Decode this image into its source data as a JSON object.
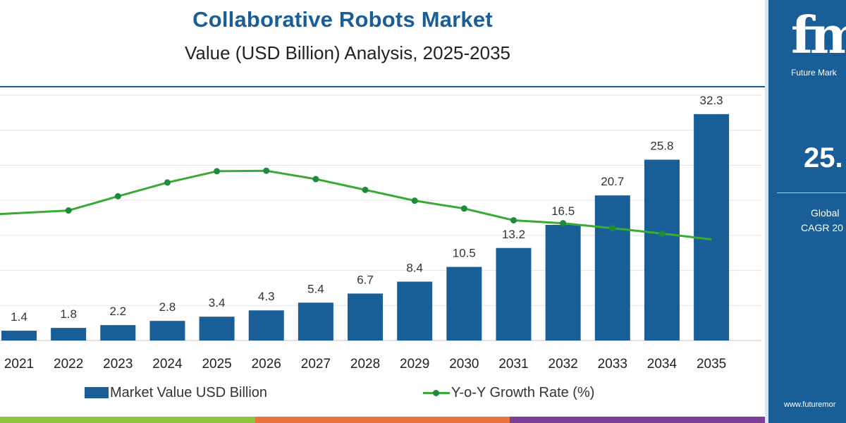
{
  "chart_data": {
    "type": "bar",
    "title": "Collaborative Robots Market",
    "subtitle": "Value (USD Billion) Analysis, 2025-2035",
    "categories": [
      "2021",
      "2022",
      "2023",
      "2024",
      "2025",
      "2026",
      "2027",
      "2028",
      "2029",
      "2030",
      "2031",
      "2032",
      "2033",
      "2034",
      "2035"
    ],
    "series": [
      {
        "name": "Market Value USD Billion",
        "type": "bar",
        "values": [
          1.4,
          1.8,
          2.2,
          2.8,
          3.4,
          4.3,
          5.4,
          6.7,
          8.4,
          10.5,
          13.2,
          16.5,
          20.7,
          25.8,
          32.3
        ],
        "labels": [
          "1.4",
          "1.8",
          "2.2",
          "2.8",
          "3.4",
          "4.3",
          "5.4",
          "6.7",
          "8.4",
          "10.5",
          "13.2",
          "16.5",
          "20.7",
          "25.8",
          "32.3"
        ],
        "color": "#1a5e97"
      },
      {
        "name": "Y-o-Y Growth Rate (%)",
        "type": "line",
        "values": [
          null,
          26.5,
          29.4,
          32.2,
          34.5,
          34.6,
          32.9,
          30.7,
          28.5,
          26.9,
          24.5,
          23.9,
          22.9,
          21.8,
          20.6
        ],
        "color": "#3aaa35",
        "marker_color": "#1e8a3c"
      }
    ],
    "ylim": [
      0,
      35
    ],
    "y2lim": [
      0,
      50
    ],
    "grid": true,
    "legend_position": "bottom"
  },
  "legend": {
    "bar_label": "Market Value USD Billion",
    "line_label": "Y-o-Y Growth Rate (%)"
  },
  "side_panel": {
    "logo_text": "fmi",
    "logo_caption": "Future Mark",
    "cagr_value": "25.",
    "cagr_label_line1": "Global",
    "cagr_label_line2": "CAGR 20",
    "site_url": "www.futuremor"
  },
  "colors": {
    "brand_blue": "#1a5e97",
    "growth_green": "#3aaa35",
    "strip": [
      "#8cc63f",
      "#e8743b",
      "#7b3f98"
    ]
  }
}
